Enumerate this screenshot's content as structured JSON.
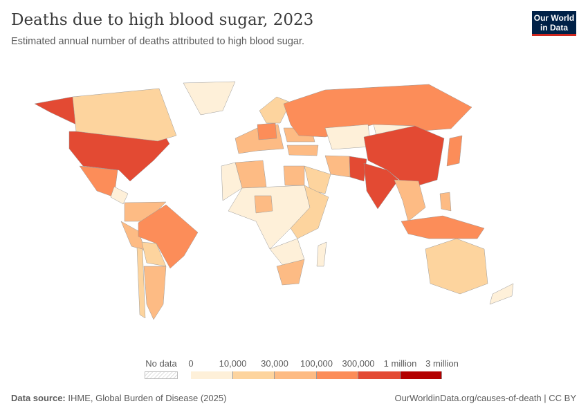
{
  "header": {
    "title": "Deaths due to high blood sugar, 2023",
    "subtitle": "Estimated annual number of deaths attributed to high blood sugar.",
    "logo": "Our World in Data"
  },
  "chart_data": {
    "type": "choropleth",
    "legend": {
      "no_data_label": "No data",
      "ticks": [
        "0",
        "10,000",
        "30,000",
        "100,000",
        "300,000",
        "1 million",
        "3 million"
      ],
      "colors": [
        "#fef0d9",
        "#fdd49e",
        "#fdbb84",
        "#fc8d59",
        "#e34a33",
        "#b30000"
      ],
      "no_data_color": "#eeeeee"
    },
    "regions": [
      {
        "name": "United States",
        "bin": 4
      },
      {
        "name": "Alaska (US)",
        "bin": 4
      },
      {
        "name": "Canada",
        "bin": 1
      },
      {
        "name": "Greenland",
        "bin": 0
      },
      {
        "name": "Mexico",
        "bin": 3
      },
      {
        "name": "Central America",
        "bin": 0
      },
      {
        "name": "Colombia & Venezuela",
        "bin": 2
      },
      {
        "name": "Peru",
        "bin": 2
      },
      {
        "name": "Brazil",
        "bin": 3
      },
      {
        "name": "Bolivia & Paraguay",
        "bin": 1
      },
      {
        "name": "Argentina",
        "bin": 2
      },
      {
        "name": "Chile",
        "bin": 1
      },
      {
        "name": "Western Europe",
        "bin": 2
      },
      {
        "name": "Germany",
        "bin": 3
      },
      {
        "name": "Scandinavia",
        "bin": 1
      },
      {
        "name": "Ukraine",
        "bin": 2
      },
      {
        "name": "Russia",
        "bin": 3
      },
      {
        "name": "Kazakhstan",
        "bin": 0
      },
      {
        "name": "Mongolia",
        "bin": 0
      },
      {
        "name": "China",
        "bin": 4
      },
      {
        "name": "Pakistan",
        "bin": 4
      },
      {
        "name": "India",
        "bin": 4
      },
      {
        "name": "Iran",
        "bin": 2
      },
      {
        "name": "Turkey",
        "bin": 2
      },
      {
        "name": "Saudi Arabia",
        "bin": 1
      },
      {
        "name": "Egypt",
        "bin": 2
      },
      {
        "name": "Algeria",
        "bin": 2
      },
      {
        "name": "North-West Africa",
        "bin": 0
      },
      {
        "name": "Sahel & Central Africa",
        "bin": 0
      },
      {
        "name": "Nigeria",
        "bin": 2
      },
      {
        "name": "East Africa",
        "bin": 1
      },
      {
        "name": "Southern Africa",
        "bin": 0
      },
      {
        "name": "South Africa",
        "bin": 2
      },
      {
        "name": "Madagascar",
        "bin": 0
      },
      {
        "name": "Southeast Asia",
        "bin": 2
      },
      {
        "name": "Japan",
        "bin": 3
      },
      {
        "name": "Philippines",
        "bin": 2
      },
      {
        "name": "Indonesia",
        "bin": 3
      },
      {
        "name": "Australia",
        "bin": 1
      },
      {
        "name": "New Zealand",
        "bin": 0
      }
    ]
  },
  "footer": {
    "source_label": "Data source:",
    "source": "IHME, Global Burden of Disease (2025)",
    "link": "OurWorldinData.org/causes-of-death | CC BY"
  }
}
